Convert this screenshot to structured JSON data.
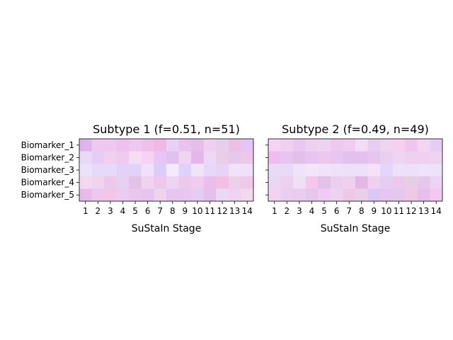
{
  "chart_data": [
    {
      "type": "heatmap",
      "title": "Subtype 1 (f=0.51, n=51)",
      "xlabel": "SuStaIn Stage",
      "ylabel": "",
      "x_ticks": [
        "1",
        "2",
        "3",
        "4",
        "5",
        "6",
        "7",
        "8",
        "9",
        "10",
        "11",
        "12",
        "13",
        "14"
      ],
      "y_ticks": [
        "Biomarker_1",
        "Biomarker_2",
        "Biomarker_3",
        "Biomarker_4",
        "Biomarker_5"
      ],
      "cell_colors": [
        [
          "#e1b3ec",
          "#efc8f0",
          "#efc8f0",
          "#edc0ef",
          "#efc8f0",
          "#efc0ec",
          "#f0b8e4",
          "#e6d2f8",
          "#ebc2ef",
          "#e6bde6",
          "#f0d0f0",
          "#e8cdef",
          "#eac0e4",
          "#e1c6f6"
        ],
        [
          "#ead8f8",
          "#e6cdf3",
          "#f0d0f0",
          "#f0cbef",
          "#f5ddf6",
          "#f5d3f3",
          "#e6c6f6",
          "#e1c2ef",
          "#f0d4f1",
          "#e4b6ec",
          "#edd8f8",
          "#eacde6",
          "#e6c8ec",
          "#eec8ea"
        ],
        [
          "#ece0fa",
          "#e6dafa",
          "#e6dafa",
          "#e2d2fa",
          "#e2d2fa",
          "#f0e0fa",
          "#dcccfa",
          "#f3ebfc",
          "#dfd2fc",
          "#efe4f9",
          "#e8d8f8",
          "#e9d2f6",
          "#f0e2fa",
          "#ede2fa"
        ],
        [
          "#f5d8f0",
          "#efd3ef",
          "#ecc8ec",
          "#e8d0f2",
          "#e2c2e6",
          "#efd3ef",
          "#ecc8ec",
          "#efd3f3",
          "#ecc8ec",
          "#f0cdf0",
          "#ebbdee",
          "#f3c0e5",
          "#ead0e8",
          "#efc8ec"
        ],
        [
          "#e6bbec",
          "#ecc7ef",
          "#f3c5ea",
          "#e8cdf0",
          "#e8c6ed",
          "#e6c4ee",
          "#efd3ef",
          "#e6c6f0",
          "#e8c6f0",
          "#e3cdf0",
          "#e4c0ea",
          "#ead8f8",
          "#efd3f3",
          "#f3d8ee"
        ]
      ]
    },
    {
      "type": "heatmap",
      "title": "Subtype 2 (f=0.49, n=49)",
      "xlabel": "SuStaIn Stage",
      "ylabel": "",
      "x_ticks": [
        "1",
        "2",
        "3",
        "4",
        "5",
        "6",
        "7",
        "8",
        "9",
        "10",
        "11",
        "12",
        "13",
        "14"
      ],
      "y_ticks": [],
      "cell_colors": [
        [
          "#f6d2f4",
          "#f0d0f0",
          "#e8c8ee",
          "#efd0f0",
          "#efd3f3",
          "#efc8ef",
          "#f0cdf0",
          "#f5dcf6",
          "#e8cdf0",
          "#efd3f3",
          "#f6d0f0",
          "#efc6ef",
          "#f5d3f3",
          "#e6cdf3"
        ],
        [
          "#edbdee",
          "#e6c6f0",
          "#e2c0ec",
          "#e6c6f0",
          "#ecc8ec",
          "#e6c6f0",
          "#e2c2ec",
          "#e2c2ec",
          "#e6c6f0",
          "#ead0f0",
          "#efd3f3",
          "#f0d0f0",
          "#f0d0f0",
          "#efd3f3"
        ],
        [
          "#e8dbfa",
          "#e8dafa",
          "#efe2fa",
          "#f3e6fb",
          "#efe2fa",
          "#ede2fa",
          "#ece0fa",
          "#ede0fa",
          "#f3e2fa",
          "#e3d6fa",
          "#ece0fa",
          "#ede0fa",
          "#efe2fa",
          "#ece2f9"
        ],
        [
          "#ebd6f4",
          "#ecd0ed",
          "#efe0f5",
          "#f6c6ee",
          "#e2c2e6",
          "#eccff0",
          "#efd0f0",
          "#e2b8e6",
          "#f0d0f0",
          "#e6cdf3",
          "#ecc8ec",
          "#e8cde6",
          "#e4c8ec",
          "#efd3f3"
        ],
        [
          "#f3d3f1",
          "#ebcdef",
          "#e8cdf0",
          "#e4c8ec",
          "#f0cbf6",
          "#efd3f3",
          "#efc8e8",
          "#e8d0e8",
          "#dcc6f6",
          "#e6c6f0",
          "#e4c8ec",
          "#f0c8e8",
          "#e6c0ec",
          "#f0c8f0"
        ]
      ]
    }
  ]
}
